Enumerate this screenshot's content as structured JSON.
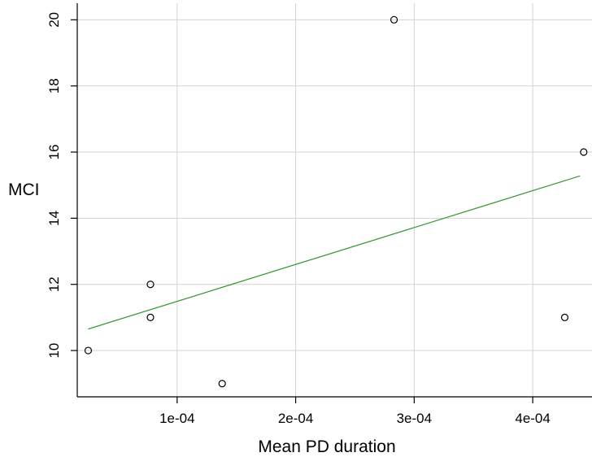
{
  "chart_data": {
    "type": "scatter",
    "title": "",
    "xlabel": "Mean PD duration",
    "ylabel": "MCI",
    "xlim": [
      1.575e-05,
      0.00045
    ],
    "ylim": [
      8.6,
      20.5
    ],
    "grid": true,
    "x_ticks": [
      0.0001,
      0.0002,
      0.0003,
      0.0004
    ],
    "x_tick_labels": [
      "1e-04",
      "2e-04",
      "3e-04",
      "4e-04"
    ],
    "y_ticks": [
      10,
      12,
      14,
      16,
      18,
      20
    ],
    "y_tick_labels": [
      "10",
      "12",
      "14",
      "16",
      "18",
      "20"
    ],
    "colors": {
      "points": "#000000",
      "fit_line": "#3c9a3c",
      "grid": "#d3d3d3"
    },
    "series": [
      {
        "type": "scatter",
        "x": [
          2.5e-05,
          7.75e-05,
          7.75e-05,
          0.000138,
          0.000283,
          0.000427,
          0.000443
        ],
        "y": [
          10,
          12,
          11,
          9,
          20,
          11,
          16
        ]
      }
    ],
    "fit_line": {
      "x": [
        2.5e-05,
        0.00044
      ],
      "y": [
        10.65,
        15.28
      ]
    }
  }
}
